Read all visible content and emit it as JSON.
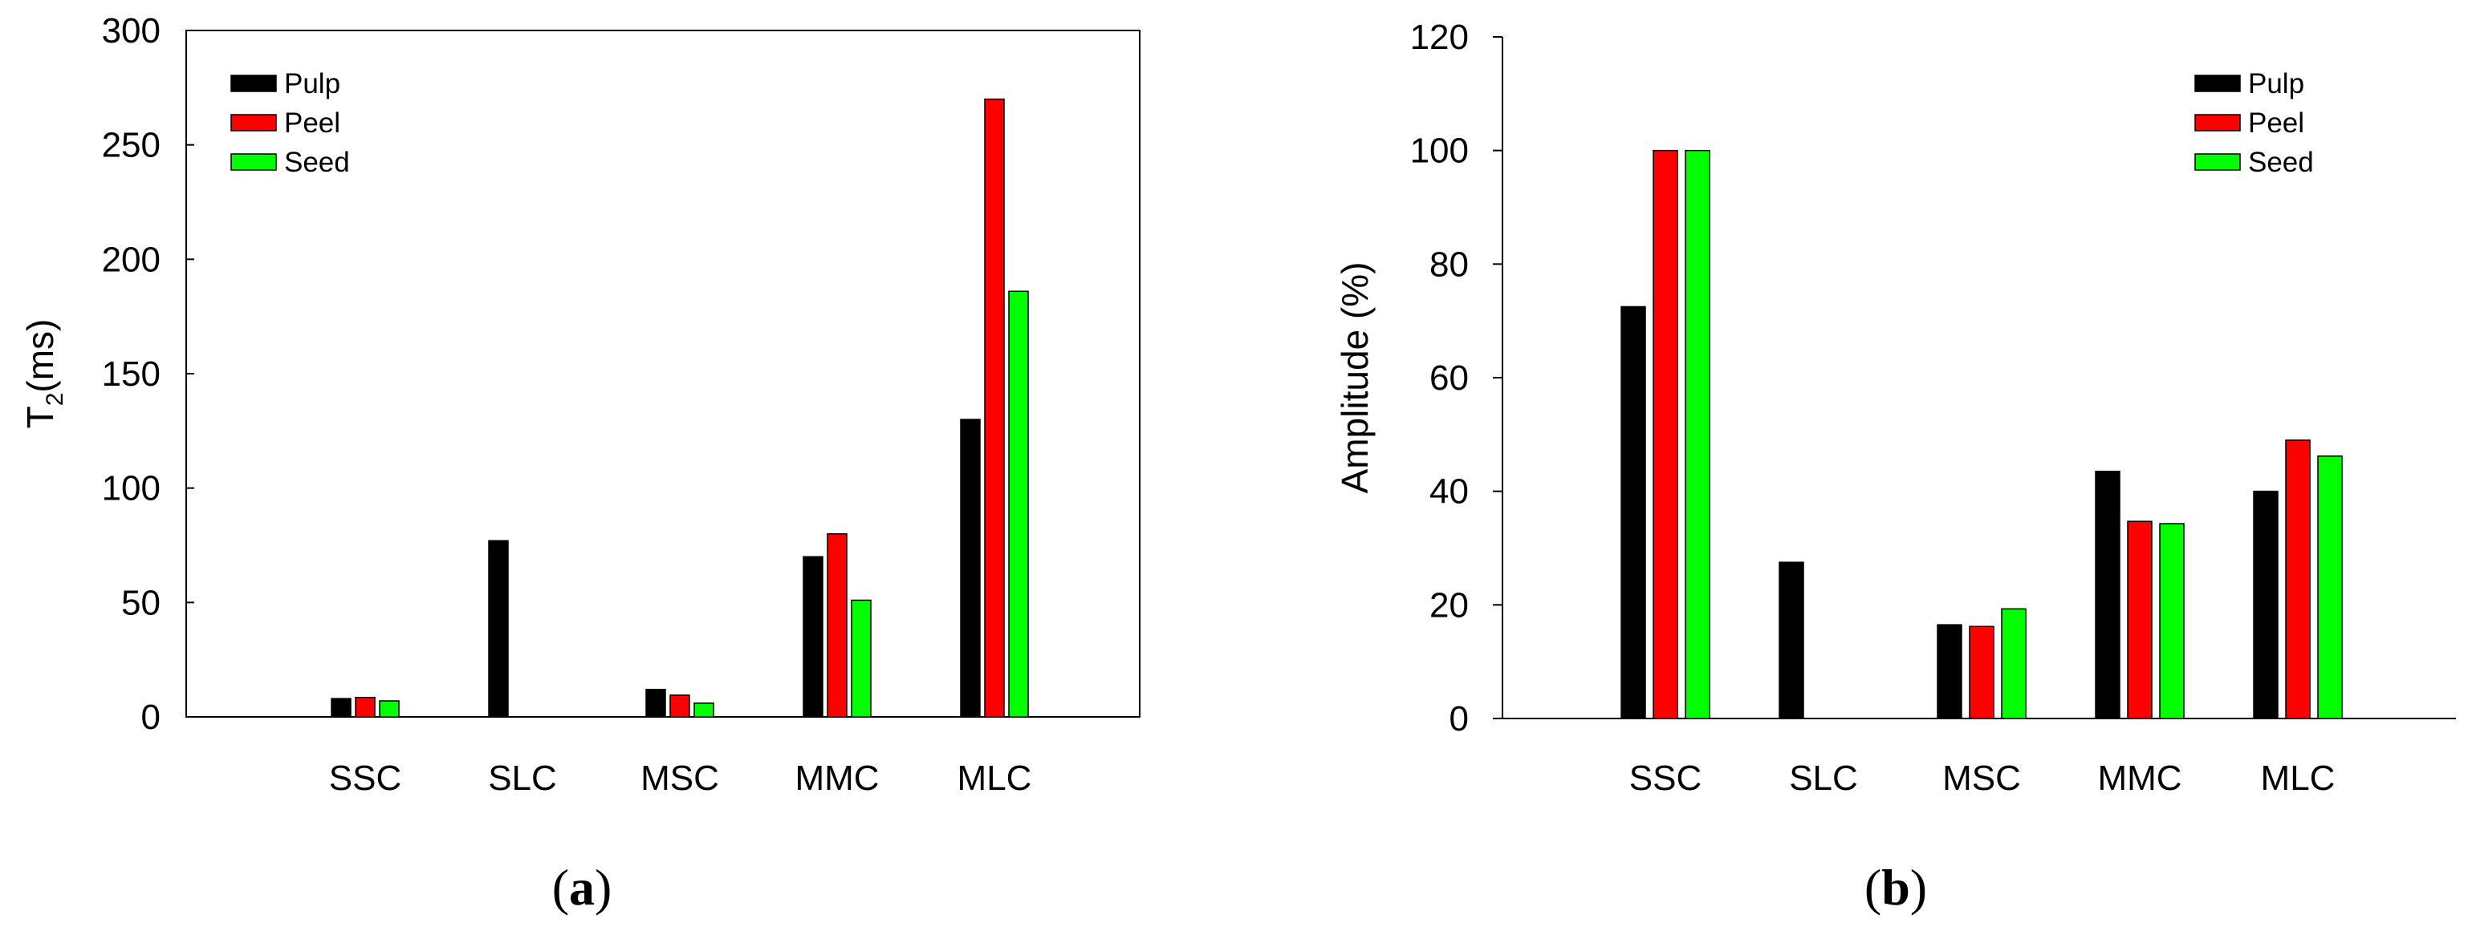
{
  "chart_data": [
    {
      "type": "bar",
      "panel_label": "(a)",
      "caption": {
        "open": "(",
        "letter": "a",
        "close": ")"
      },
      "categories": [
        "SSC",
        "SLC",
        "MSC",
        "MMC",
        "MLC"
      ],
      "series": [
        {
          "name": "Pulp",
          "color": "#000000",
          "values": [
            8,
            77,
            12,
            70,
            130
          ]
        },
        {
          "name": "Peel",
          "color": "#ff0000",
          "values": [
            8.5,
            0,
            9.5,
            80,
            270
          ]
        },
        {
          "name": "Seed",
          "color": "#00ff00",
          "values": [
            7,
            0,
            6,
            51,
            186
          ]
        }
      ],
      "ylabel": {
        "main": "T",
        "sub": "2",
        "rest": "(ms)"
      },
      "xlabel": "",
      "ylim": [
        0,
        300
      ],
      "yticks": [
        "0",
        "50",
        "100",
        "150",
        "200",
        "250",
        "300"
      ],
      "legend_position": "top-left"
    },
    {
      "type": "bar",
      "panel_label": "(b)",
      "caption": {
        "open": "(",
        "letter": "b",
        "close": ")"
      },
      "categories": [
        "SSC",
        "SLC",
        "MSC",
        "MMC",
        "MLC"
      ],
      "series": [
        {
          "name": "Pulp",
          "color": "#000000",
          "values": [
            72.5,
            27.5,
            16.5,
            43.5,
            40
          ]
        },
        {
          "name": "Peel",
          "color": "#ff0000",
          "values": [
            100,
            0,
            16.2,
            34.7,
            49
          ]
        },
        {
          "name": "Seed",
          "color": "#00ff00",
          "values": [
            100,
            0,
            19.3,
            34.3,
            46.2
          ]
        }
      ],
      "ylabel": {
        "main": "Amplitude (%)",
        "sub": "",
        "rest": ""
      },
      "xlabel": "",
      "ylim": [
        0,
        120
      ],
      "yticks": [
        "0",
        "20",
        "40",
        "60",
        "80",
        "100",
        "120"
      ],
      "legend_position": "top-right"
    }
  ]
}
